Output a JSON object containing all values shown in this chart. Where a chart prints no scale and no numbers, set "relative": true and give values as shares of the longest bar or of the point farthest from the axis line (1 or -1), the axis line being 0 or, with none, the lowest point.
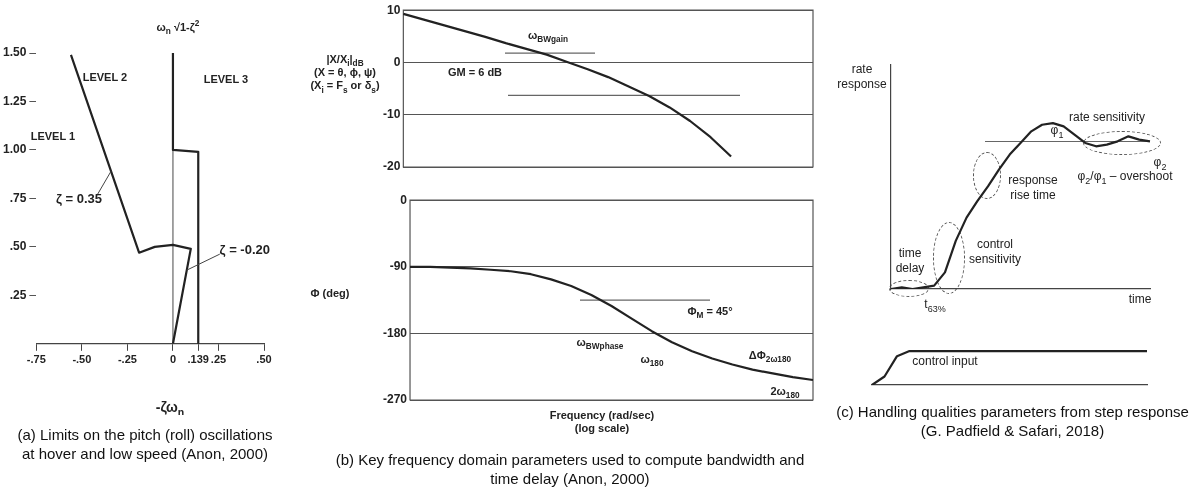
{
  "chart_data": [
    {
      "type": "line",
      "title": "(a) Limits on the pitch (roll) oscillations at hover and low speed (Anon, 2000)",
      "xlabel": "-ζω$_{n}$",
      "ylabel": "ω$_{n}$ √1-ζ$^{2}$",
      "xlim": [
        -0.75,
        0.5
      ],
      "ylim": [
        0,
        1.5
      ],
      "xticks": [
        {
          "value": -0.75,
          "label": "-.75"
        },
        {
          "value": -0.5,
          "label": "-.50"
        },
        {
          "value": -0.25,
          "label": "-.25"
        },
        0,
        {
          "value": 0.139,
          "label": ".139"
        },
        {
          "value": 0.25,
          "label": ".25"
        },
        {
          "value": 0.5,
          "label": ".50"
        }
      ],
      "yticks": [
        {
          "value": 0.25,
          "label": ".25"
        },
        {
          "value": 0.5,
          "label": ".50"
        },
        {
          "value": 0.75,
          "label": ".75"
        },
        {
          "value": 1,
          "label": "1.00"
        },
        {
          "value": 1.25,
          "label": "1.25"
        },
        {
          "value": 1.5,
          "label": "1.50"
        }
      ],
      "grid": false,
      "marker": "none",
      "series": [
        {
          "color": "#222222",
          "x": [
            -0.56,
            -0.186,
            -0.1,
            0,
            0.098,
            0
          ],
          "values": [
            1.49,
            0.47,
            0.5,
            0.51,
            0.49,
            0
          ]
        },
        {
          "color": "#222222",
          "x": [
            0,
            0,
            0.139,
            0.139
          ],
          "values": [
            1.5,
            1.0,
            0.99,
            0
          ]
        }
      ],
      "ref_lines": [
        {
          "axis": "x",
          "value": 0,
          "label": null
        }
      ],
      "annotations": [
        "LEVEL 1",
        "LEVEL 2",
        "LEVEL 3",
        {
          "text": "ζ = 0.35",
          "x": -0.34,
          "y": 0.89
        },
        {
          "text": "ζ = -0.20",
          "x": 0.076,
          "y": 0.38
        }
      ]
    },
    {
      "type": "line",
      "ylabel": "|X/X$_{i}$|$_{dB}$\n(X = θ, ϕ, ψ)\n(X$_{i}$ = F$_{s}$ or δ$_{s}$)",
      "categories": [
        null,
        null,
        null,
        null,
        null,
        null,
        null,
        null,
        null,
        null,
        null,
        null,
        null,
        null,
        null,
        null,
        null,
        null,
        null,
        null,
        null
      ],
      "ylim": [
        -20,
        10
      ],
      "yticks": [
        -20,
        -10,
        0,
        10
      ],
      "grid": "y",
      "tick_labels": "y",
      "marker": "none",
      "color": "#222222",
      "values": [
        9.3,
        8.2,
        7.1,
        6.0,
        4.9,
        3.7,
        2.6,
        1.5,
        0.1,
        -1.3,
        -2.8,
        -4.6,
        -6.4,
        -8.6,
        -11.2,
        -14.3,
        -18.0,
        null,
        null,
        null,
        null
      ],
      "ref_lines": [
        {
          "axis": "y",
          "value": 1.8,
          "label": null
        },
        {
          "axis": "y",
          "value": -6.3,
          "label": null
        }
      ],
      "annotations": [
        "ω$_{BWgain}$",
        "GM = 6 dB"
      ]
    },
    {
      "type": "line",
      "title": "(b) Key frequency domain parameters used to compute bandwidth and time delay (Anon, 2000)",
      "xlabel": "Frequency (rad/sec)\n(log scale)",
      "ylabel": "Φ (deg)",
      "categories": [
        null,
        null,
        null,
        null,
        null,
        null,
        null,
        null,
        null,
        null,
        null,
        null,
        null,
        null,
        null,
        null,
        null,
        null,
        null,
        null,
        null
      ],
      "ylim": [
        -270,
        0
      ],
      "yticks": [
        -270,
        -180,
        -90,
        0
      ],
      "grid": "y",
      "tick_labels": "y",
      "marker": "none",
      "color": "#222222",
      "values": [
        -90,
        -90,
        -91,
        -92,
        -94,
        -96,
        -100,
        -107,
        -116,
        -128,
        -143,
        -160,
        -177,
        -192,
        -204,
        -214,
        -222,
        -229,
        -234,
        -239,
        -243
      ],
      "ref_lines": [
        {
          "axis": "y",
          "value": -135,
          "label": null
        }
      ],
      "annotations": [
        "ω$_{BWphase}$",
        "ω$_{180}$",
        "Φ$_{M}$ = 45°",
        "ΔΦ$_{2ω180}$",
        "2ω$_{180}$"
      ]
    },
    {
      "type": "line",
      "title": "(c) Handling qualities parameters from step response (G. Padfield & Safari, 2018)",
      "xlabel": "time",
      "ylabel": "rate\nresponse",
      "relative": true,
      "tick_labels": false,
      "marker": "none",
      "color": "#222222",
      "categories": [
        null,
        null,
        null,
        null,
        null,
        null,
        null,
        null,
        null,
        null,
        null,
        null,
        null,
        null,
        null,
        null,
        null,
        null,
        null,
        null,
        null,
        null,
        null,
        null,
        null
      ],
      "values": [
        0,
        0.01,
        0,
        0.01,
        0.02,
        0.1,
        0.29,
        0.43,
        0.53,
        0.62,
        0.72,
        0.81,
        0.88,
        0.95,
        0.99,
        1.0,
        0.98,
        0.93,
        0.88,
        0.86,
        0.87,
        0.89,
        0.92,
        0.9,
        0.89
      ],
      "ref_lines": [
        {
          "axis": "y",
          "value": 0.889,
          "label": null
        }
      ],
      "annotations": [
        "time\ndelay",
        "control\nsensitivity",
        "response\nrise time",
        "rate sensitivity",
        "φ$_{1}$",
        "φ$_{2}$",
        "φ$_{2}$/φ$_{1}$ – overshoot",
        "t$_{63%}$"
      ]
    },
    {
      "type": "line",
      "relative": true,
      "tick_labels": false,
      "marker": "none",
      "color": "#222222",
      "categories": [
        null,
        null,
        null,
        null,
        null,
        null,
        null,
        null,
        null,
        null,
        null,
        null,
        null,
        null,
        null,
        null,
        null,
        null,
        null,
        null,
        null,
        null,
        null
      ],
      "values": [
        0,
        0.25,
        0.85,
        1,
        1,
        1,
        1,
        1,
        1,
        1,
        1,
        1,
        1,
        1,
        1,
        1,
        1,
        1,
        1,
        1,
        1,
        1,
        1
      ],
      "annotations": [
        "control input"
      ]
    }
  ]
}
